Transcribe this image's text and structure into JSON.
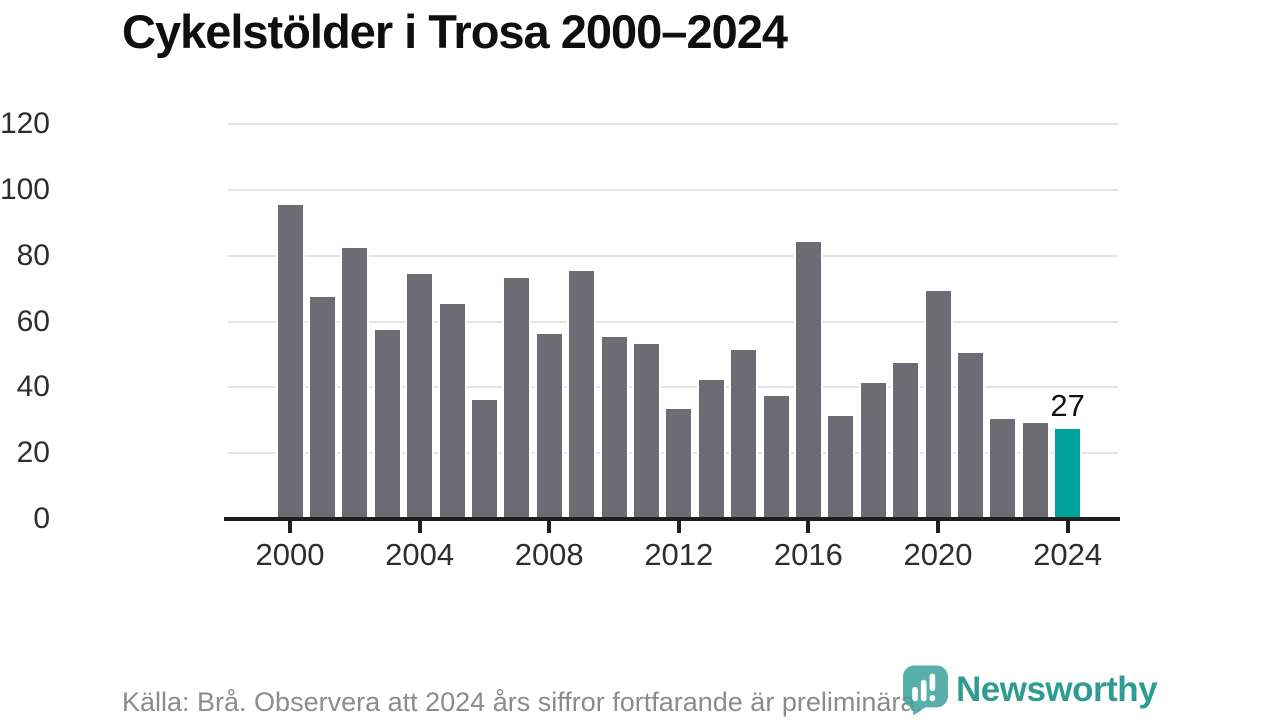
{
  "title": "Cykelstölder i Trosa 2000–2024",
  "chart_data": {
    "type": "bar",
    "title": "Cykelstölder i Trosa 2000–2024",
    "x": [
      2000,
      2001,
      2002,
      2003,
      2004,
      2005,
      2006,
      2007,
      2008,
      2009,
      2010,
      2011,
      2012,
      2013,
      2014,
      2015,
      2016,
      2017,
      2018,
      2019,
      2020,
      2021,
      2022,
      2023,
      2024
    ],
    "values": [
      95,
      67,
      82,
      57,
      74,
      65,
      36,
      73,
      56,
      75,
      55,
      53,
      33,
      42,
      51,
      37,
      84,
      31,
      41,
      47,
      69,
      50,
      30,
      29,
      27
    ],
    "highlight_year": 2024,
    "highlight_label": "27",
    "xlabel": "",
    "ylabel": "",
    "ylim": [
      0,
      120
    ],
    "yticks": [
      0,
      20,
      40,
      60,
      80,
      100,
      120
    ],
    "xticks": [
      2000,
      2004,
      2008,
      2012,
      2016,
      2020,
      2024
    ],
    "grid": true,
    "legend": "none",
    "bar_color": "#6d6c72",
    "highlight_color": "#00a39a"
  },
  "footer": {
    "source_note": "Källa: Brå. Observera att 2024 års siffror fortfarande är preliminära."
  },
  "branding": {
    "logo_icon": "newsworthy-speech-bubble-bar-chart-icon",
    "logo_text": "Newsworthy",
    "logo_color": "#2f9c94"
  }
}
